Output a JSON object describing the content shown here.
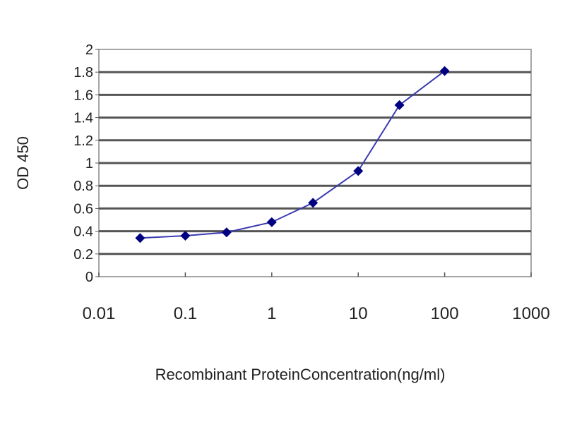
{
  "chart_data": {
    "type": "line",
    "title": "",
    "xlabel": "Recombinant ProteinConcentration(ng/ml)",
    "ylabel": "OD 450",
    "x_scale": "log",
    "xlim": [
      0.01,
      1000
    ],
    "ylim": [
      0,
      2
    ],
    "x_ticks": [
      "0.01",
      "0.1",
      "1",
      "10",
      "100",
      "1000"
    ],
    "y_ticks": [
      "0",
      "0.2",
      "0.4",
      "0.6",
      "0.8",
      "1",
      "1.2",
      "1.4",
      "1.6",
      "1.8",
      "2"
    ],
    "grid": "horizontal",
    "legend": "none",
    "series": [
      {
        "x": [
          0.03,
          0.1,
          0.3,
          1,
          3,
          10,
          30,
          100
        ],
        "y": [
          0.34,
          0.36,
          0.39,
          0.48,
          0.65,
          0.93,
          1.51,
          1.81
        ],
        "line_color": "#3a3ab0",
        "marker_color": "#000080",
        "marker": "diamond"
      }
    ]
  }
}
